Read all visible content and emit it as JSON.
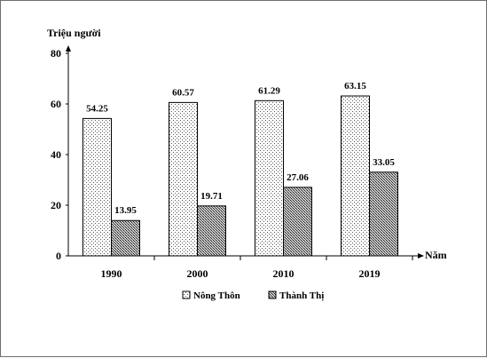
{
  "chart_data": {
    "type": "bar",
    "ylabel": "Triệu người",
    "xlabel": "Năm",
    "categories": [
      "1990",
      "2000",
      "2010",
      "2019"
    ],
    "ylim": [
      0,
      80
    ],
    "yticks": [
      "0",
      "20",
      "40",
      "60",
      "80"
    ],
    "series": [
      {
        "name": "Nông Thôn",
        "values": [
          54.25,
          60.57,
          61.29,
          63.15
        ],
        "labels": [
          "54.25",
          "60.57",
          "61.29",
          "63.15"
        ],
        "pattern": "dots"
      },
      {
        "name": "Thành Thị",
        "values": [
          13.95,
          19.71,
          27.06,
          33.05
        ],
        "labels": [
          "13.95",
          "19.71",
          "27.06",
          "33.05"
        ],
        "pattern": "crosshatch"
      }
    ],
    "legend_position": "bottom",
    "grid": false
  }
}
